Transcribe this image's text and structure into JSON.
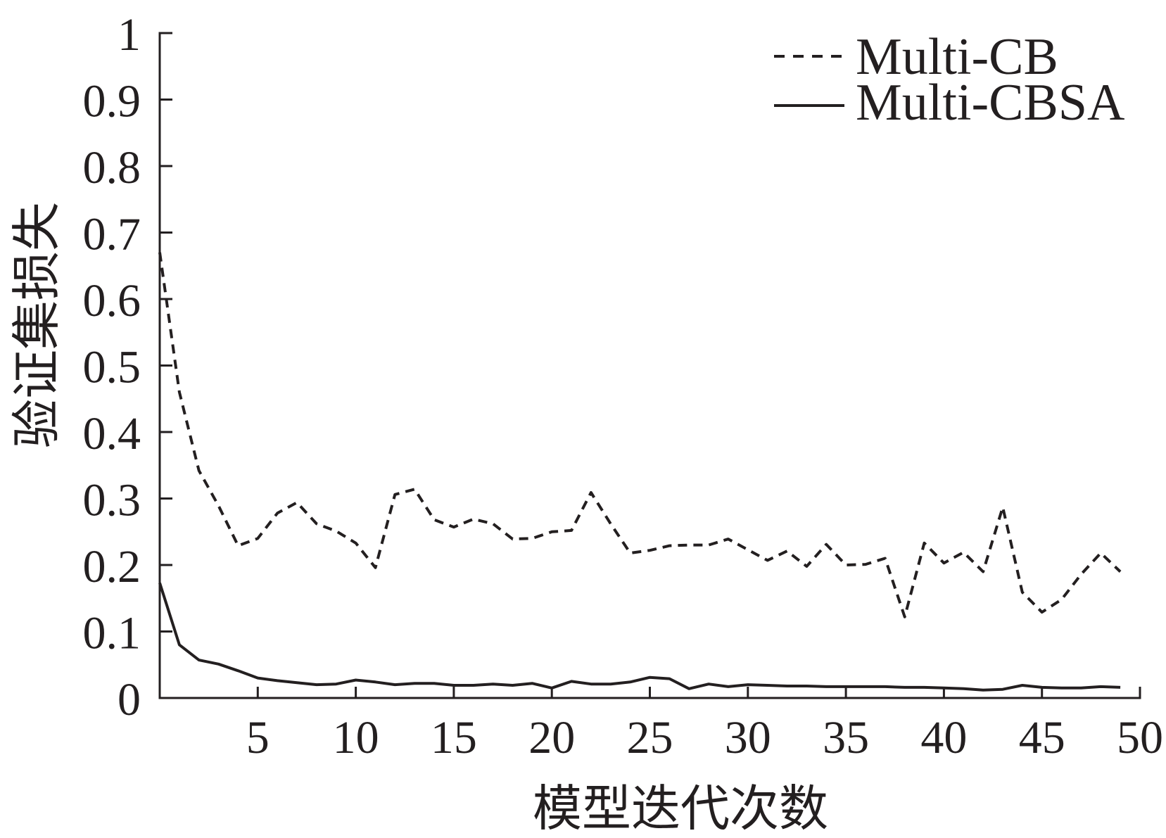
{
  "chart_data": {
    "type": "line",
    "xlabel": "模型迭代次数",
    "ylabel": "验证集损失",
    "xlim": [
      0,
      50
    ],
    "ylim": [
      0,
      1
    ],
    "xticks": [
      5,
      10,
      15,
      20,
      25,
      30,
      35,
      40,
      45,
      50
    ],
    "yticks": [
      0,
      0.1,
      0.2,
      0.3,
      0.4,
      0.5,
      0.6,
      0.7,
      0.8,
      0.9,
      1
    ],
    "grid": false,
    "legend": {
      "position": "top-right"
    },
    "x": [
      0,
      1,
      2,
      3,
      4,
      5,
      6,
      7,
      8,
      9,
      10,
      11,
      12,
      13,
      14,
      15,
      16,
      17,
      18,
      19,
      20,
      21,
      22,
      23,
      24,
      25,
      26,
      27,
      28,
      29,
      30,
      31,
      32,
      33,
      34,
      35,
      36,
      37,
      38,
      39,
      40,
      41,
      42,
      43,
      44,
      45,
      46,
      47,
      48,
      49
    ],
    "series": [
      {
        "name": "Multi-CB",
        "dashed": true,
        "color": "#231f20",
        "values": [
          0.67,
          0.46,
          0.342,
          0.289,
          0.229,
          0.24,
          0.278,
          0.294,
          0.262,
          0.251,
          0.233,
          0.196,
          0.306,
          0.314,
          0.268,
          0.257,
          0.269,
          0.262,
          0.239,
          0.24,
          0.25,
          0.252,
          0.309,
          0.262,
          0.218,
          0.222,
          0.229,
          0.23,
          0.23,
          0.239,
          0.223,
          0.207,
          0.221,
          0.198,
          0.231,
          0.2,
          0.201,
          0.21,
          0.122,
          0.233,
          0.203,
          0.219,
          0.19,
          0.287,
          0.159,
          0.129,
          0.148,
          0.186,
          0.218,
          0.19
        ]
      },
      {
        "name": "Multi-CBSA",
        "dashed": false,
        "color": "#231f20",
        "values": [
          0.173,
          0.08,
          0.057,
          0.051,
          0.041,
          0.03,
          0.026,
          0.023,
          0.02,
          0.021,
          0.027,
          0.024,
          0.02,
          0.022,
          0.022,
          0.019,
          0.019,
          0.021,
          0.019,
          0.022,
          0.015,
          0.025,
          0.021,
          0.021,
          0.024,
          0.031,
          0.029,
          0.014,
          0.021,
          0.017,
          0.02,
          0.019,
          0.018,
          0.018,
          0.017,
          0.017,
          0.017,
          0.017,
          0.016,
          0.016,
          0.015,
          0.014,
          0.012,
          0.013,
          0.019,
          0.016,
          0.015,
          0.015,
          0.017,
          0.016
        ]
      }
    ]
  }
}
